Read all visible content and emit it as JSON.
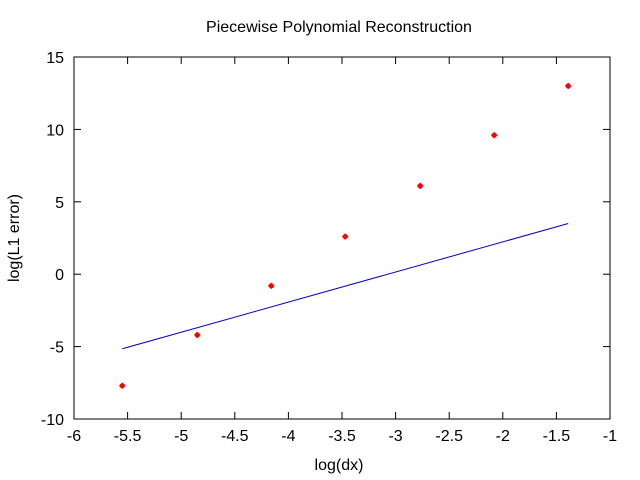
{
  "chart_data": {
    "type": "scatter",
    "title": "Piecewise Polynomial Reconstruction",
    "xlabel": "log(dx)",
    "ylabel": "log(L1 error)",
    "xlim": [
      -6,
      -1
    ],
    "ylim": [
      -10,
      15
    ],
    "xticks": [
      -6,
      -5.5,
      -5,
      -4.5,
      -4,
      -3.5,
      -3,
      -2.5,
      -2,
      -1.5,
      -1
    ],
    "yticks": [
      -10,
      -5,
      0,
      5,
      10,
      15
    ],
    "grid": false,
    "legend": "none",
    "series": [
      {
        "kind": "points",
        "color": "#ff0000",
        "x": [
          -5.55,
          -4.85,
          -4.16,
          -3.47,
          -2.77,
          -2.08,
          -1.39
        ],
        "y": [
          -7.7,
          -4.2,
          -0.8,
          2.6,
          6.1,
          9.6,
          13.0
        ]
      },
      {
        "kind": "line",
        "color": "#0000cc",
        "x": [
          -5.55,
          -1.39
        ],
        "y": [
          -5.15,
          3.5
        ]
      }
    ]
  }
}
